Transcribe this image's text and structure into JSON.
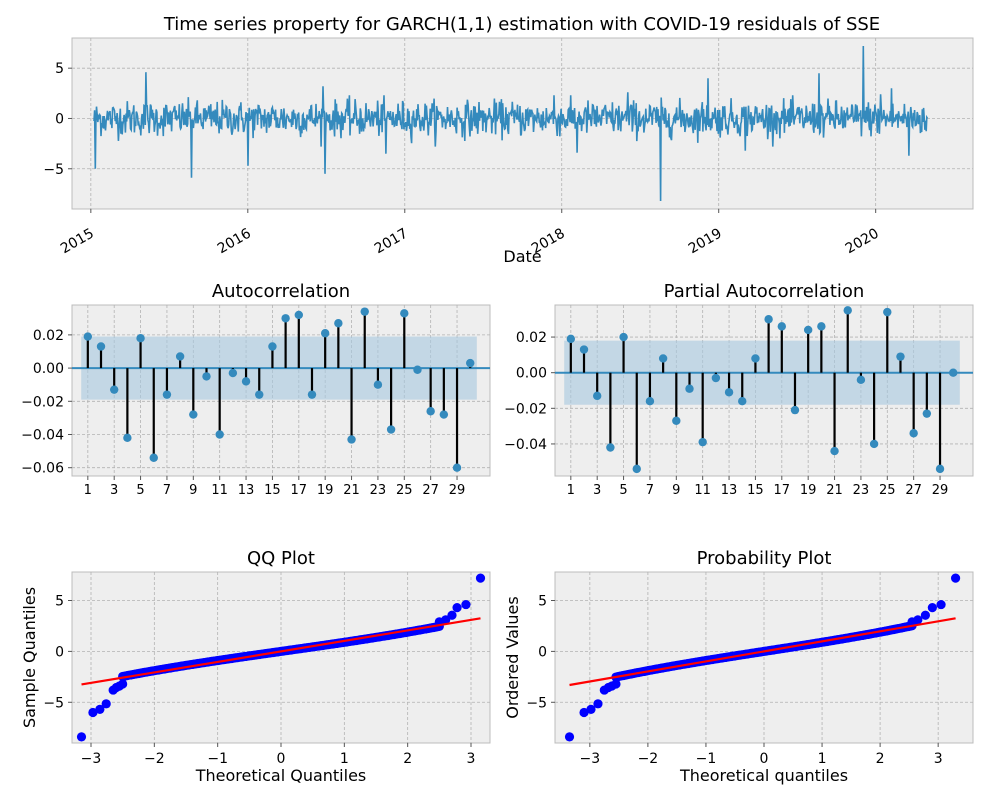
{
  "figure_title": "Time series property for GARCH(1,1) estimation with COVID-19 residuals of SSE",
  "colors": {
    "series": "#348abd",
    "stem": "#000000",
    "band": "#a6c8e0",
    "qq_points": "#0000ff",
    "qq_line": "#ff0000"
  },
  "chart_data": [
    {
      "id": "timeseries",
      "type": "line",
      "title": "",
      "xlabel": "Date",
      "ylabel": "",
      "xlim": [
        2014.88,
        2020.62
      ],
      "ylim": [
        -9,
        8
      ],
      "x_ticks": [
        "2015",
        "2016",
        "2017",
        "2018",
        "2019",
        "2020"
      ],
      "y_ticks": [
        -5,
        0,
        5
      ],
      "series_range": [
        2015.02,
        2020.33
      ],
      "spikes": [
        {
          "x": 2015.03,
          "y": -5.0
        },
        {
          "x": 2015.35,
          "y": 4.6
        },
        {
          "x": 2015.64,
          "y": -5.9
        },
        {
          "x": 2016.0,
          "y": -4.7
        },
        {
          "x": 2016.48,
          "y": 3.2
        },
        {
          "x": 2016.49,
          "y": -5.5
        },
        {
          "x": 2016.88,
          "y": -3.5
        },
        {
          "x": 2017.95,
          "y": 2.3
        },
        {
          "x": 2018.1,
          "y": -3.4
        },
        {
          "x": 2018.42,
          "y": 2.6
        },
        {
          "x": 2018.63,
          "y": -8.2
        },
        {
          "x": 2018.93,
          "y": 4.0
        },
        {
          "x": 2019.17,
          "y": -3.2
        },
        {
          "x": 2019.64,
          "y": 4.5
        },
        {
          "x": 2019.92,
          "y": 7.2
        },
        {
          "x": 2020.03,
          "y": 2.4
        },
        {
          "x": 2020.1,
          "y": 3.0
        },
        {
          "x": 2020.21,
          "y": -3.7
        }
      ],
      "grid": true
    },
    {
      "id": "acf",
      "type": "stem",
      "title": "Autocorrelation",
      "xlim": [
        -0.2,
        31.5
      ],
      "ylim": [
        -0.065,
        0.038
      ],
      "x_ticks": [
        1,
        3,
        5,
        7,
        9,
        11,
        13,
        15,
        17,
        19,
        21,
        23,
        25,
        27,
        29
      ],
      "y_ticks": [
        "0.02",
        "0.00",
        "−0.02",
        "−0.04",
        "−0.06"
      ],
      "y_tick_values": [
        0.02,
        0.0,
        -0.02,
        -0.04,
        -0.06
      ],
      "lags": [
        1,
        2,
        3,
        4,
        5,
        6,
        7,
        8,
        9,
        10,
        11,
        12,
        13,
        14,
        15,
        16,
        17,
        18,
        19,
        20,
        21,
        22,
        23,
        24,
        25,
        26,
        27,
        28,
        29,
        30
      ],
      "values": [
        0.019,
        0.013,
        -0.013,
        -0.042,
        0.018,
        -0.054,
        -0.016,
        0.007,
        -0.028,
        -0.005,
        -0.04,
        -0.003,
        -0.008,
        -0.016,
        0.013,
        0.03,
        0.032,
        -0.016,
        0.021,
        0.027,
        -0.043,
        0.034,
        -0.01,
        -0.037,
        0.033,
        -0.001,
        -0.026,
        -0.028,
        -0.06,
        0.003
      ],
      "confidence": 0.019,
      "grid": true
    },
    {
      "id": "pacf",
      "type": "stem",
      "title": "Partial Autocorrelation",
      "xlim": [
        -0.2,
        31.5
      ],
      "ylim": [
        -0.058,
        0.038
      ],
      "x_ticks": [
        1,
        3,
        5,
        7,
        9,
        11,
        13,
        15,
        17,
        19,
        21,
        23,
        25,
        27,
        29
      ],
      "y_ticks": [
        "0.02",
        "0.00",
        "−0.02",
        "−0.04"
      ],
      "y_tick_values": [
        0.02,
        0.0,
        -0.02,
        -0.04
      ],
      "lags": [
        1,
        2,
        3,
        4,
        5,
        6,
        7,
        8,
        9,
        10,
        11,
        12,
        13,
        14,
        15,
        16,
        17,
        18,
        19,
        20,
        21,
        22,
        23,
        24,
        25,
        26,
        27,
        28,
        29,
        30
      ],
      "values": [
        0.019,
        0.013,
        -0.013,
        -0.042,
        0.02,
        -0.054,
        -0.016,
        0.008,
        -0.027,
        -0.009,
        -0.039,
        -0.003,
        -0.011,
        -0.016,
        0.008,
        0.03,
        0.026,
        -0.021,
        0.024,
        0.026,
        -0.044,
        0.035,
        -0.004,
        -0.04,
        0.034,
        0.009,
        -0.034,
        -0.023,
        -0.054,
        0.0
      ],
      "confidence": 0.018,
      "grid": true
    },
    {
      "id": "qq",
      "type": "scatter",
      "title": "QQ Plot",
      "xlabel": "Theoretical Quantiles",
      "ylabel": "Sample Quantiles",
      "xlim": [
        -3.3,
        3.3
      ],
      "ylim": [
        -9.0,
        7.8
      ],
      "x_ticks": [
        -3,
        -2,
        -1,
        0,
        1,
        2,
        3
      ],
      "y_ticks": [
        -5,
        0,
        5
      ],
      "fit_line": [
        [
          -3.15,
          -3.25
        ],
        [
          3.15,
          3.25
        ]
      ],
      "tail_points": [
        [
          -3.15,
          -8.4
        ],
        [
          -2.97,
          -6.0
        ],
        [
          -2.86,
          -5.7
        ],
        [
          -2.76,
          -5.15
        ],
        [
          -2.65,
          -3.8
        ],
        [
          -2.6,
          -3.55
        ],
        [
          -2.55,
          -3.4
        ],
        [
          -2.5,
          -3.2
        ],
        [
          2.5,
          2.9
        ],
        [
          2.6,
          3.1
        ],
        [
          2.7,
          3.55
        ],
        [
          2.78,
          4.3
        ],
        [
          2.92,
          4.6
        ],
        [
          3.15,
          7.2
        ]
      ],
      "grid": true
    },
    {
      "id": "probplot",
      "type": "scatter",
      "title": "Probability Plot",
      "xlabel": "Theoretical quantiles",
      "ylabel": "Ordered Values",
      "xlim": [
        -3.6,
        3.6
      ],
      "ylim": [
        -9.0,
        7.8
      ],
      "x_ticks": [
        -3,
        -2,
        -1,
        0,
        1,
        2,
        3
      ],
      "y_ticks": [
        -5,
        0,
        5
      ],
      "fit_line": [
        [
          -3.35,
          -3.3
        ],
        [
          3.3,
          3.25
        ]
      ],
      "tail_points": [
        [
          -3.35,
          -8.4
        ],
        [
          -3.1,
          -6.0
        ],
        [
          -2.98,
          -5.7
        ],
        [
          -2.86,
          -5.15
        ],
        [
          -2.75,
          -3.8
        ],
        [
          -2.68,
          -3.55
        ],
        [
          -2.62,
          -3.4
        ],
        [
          -2.55,
          -3.2
        ],
        [
          2.55,
          2.9
        ],
        [
          2.65,
          3.1
        ],
        [
          2.78,
          3.55
        ],
        [
          2.9,
          4.3
        ],
        [
          3.05,
          4.6
        ],
        [
          3.3,
          7.2
        ]
      ],
      "grid": true
    }
  ]
}
